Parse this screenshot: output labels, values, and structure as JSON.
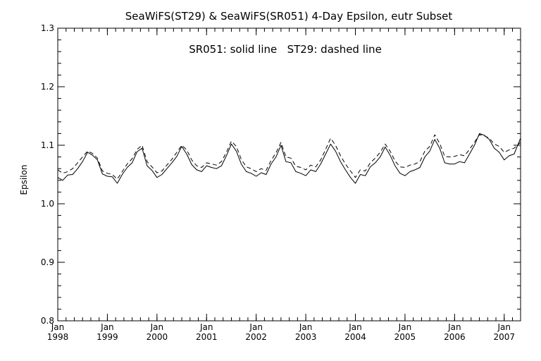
{
  "chart_data": {
    "type": "line",
    "title": "SeaWiFS(ST29) & SeaWiFS(SR051) 4-Day Epsilon, eutr Subset",
    "subtitle": "SR051: solid line   ST29: dashed line",
    "xlabel": "",
    "ylabel": "Epsilon",
    "xlim": [
      1998.0,
      2007.33
    ],
    "ylim": [
      0.8,
      1.3
    ],
    "yticks": [
      "0.8",
      "0.9",
      "1.0",
      "1.1",
      "1.2",
      "1.3"
    ],
    "xticks": [
      {
        "month": "Jan",
        "year": "1998",
        "x": 1998
      },
      {
        "month": "Jan",
        "year": "1999",
        "x": 1999
      },
      {
        "month": "Jan",
        "year": "2000",
        "x": 2000
      },
      {
        "month": "Jan",
        "year": "2001",
        "x": 2001
      },
      {
        "month": "Jan",
        "year": "2002",
        "x": 2002
      },
      {
        "month": "Jan",
        "year": "2003",
        "x": 2003
      },
      {
        "month": "Jan",
        "year": "2004",
        "x": 2004
      },
      {
        "month": "Jan",
        "year": "2005",
        "x": 2005
      },
      {
        "month": "Jan",
        "year": "2006",
        "x": 2006
      },
      {
        "month": "Jan",
        "year": "2007",
        "x": 2007
      }
    ],
    "grid": false,
    "series": [
      {
        "name": "SR051",
        "style": "solid",
        "color": "#000000",
        "x": [
          1998.0,
          1998.1,
          1998.2,
          1998.3,
          1998.4,
          1998.5,
          1998.6,
          1998.7,
          1998.8,
          1998.9,
          1999.0,
          1999.1,
          1999.2,
          1999.3,
          1999.4,
          1999.5,
          1999.6,
          1999.7,
          1999.8,
          1999.9,
          2000.0,
          2000.1,
          2000.2,
          2000.3,
          2000.4,
          2000.5,
          2000.6,
          2000.7,
          2000.8,
          2000.9,
          2001.0,
          2001.1,
          2001.2,
          2001.3,
          2001.4,
          2001.5,
          2001.6,
          2001.7,
          2001.8,
          2001.9,
          2002.0,
          2002.1,
          2002.2,
          2002.3,
          2002.4,
          2002.5,
          2002.6,
          2002.7,
          2002.8,
          2002.9,
          2003.0,
          2003.1,
          2003.2,
          2003.3,
          2003.4,
          2003.5,
          2003.6,
          2003.7,
          2003.8,
          2003.9,
          2004.0,
          2004.1,
          2004.2,
          2004.3,
          2004.4,
          2004.5,
          2004.6,
          2004.7,
          2004.8,
          2004.9,
          2005.0,
          2005.1,
          2005.2,
          2005.3,
          2005.4,
          2005.5,
          2005.6,
          2005.7,
          2005.8,
          2005.9,
          2006.0,
          2006.1,
          2006.2,
          2006.3,
          2006.4,
          2006.5,
          2006.6,
          2006.7,
          2006.8,
          2006.9,
          2007.0,
          2007.1,
          2007.2,
          2007.33
        ],
        "y": [
          1.045,
          1.04,
          1.049,
          1.05,
          1.06,
          1.072,
          1.088,
          1.083,
          1.075,
          1.051,
          1.047,
          1.046,
          1.035,
          1.05,
          1.062,
          1.07,
          1.089,
          1.095,
          1.065,
          1.057,
          1.045,
          1.05,
          1.06,
          1.07,
          1.081,
          1.098,
          1.085,
          1.067,
          1.058,
          1.055,
          1.065,
          1.062,
          1.06,
          1.065,
          1.082,
          1.102,
          1.09,
          1.068,
          1.055,
          1.052,
          1.047,
          1.053,
          1.05,
          1.068,
          1.08,
          1.1,
          1.072,
          1.07,
          1.055,
          1.052,
          1.048,
          1.058,
          1.055,
          1.068,
          1.085,
          1.102,
          1.09,
          1.072,
          1.058,
          1.045,
          1.035,
          1.05,
          1.048,
          1.063,
          1.07,
          1.08,
          1.097,
          1.083,
          1.065,
          1.052,
          1.048,
          1.055,
          1.058,
          1.062,
          1.08,
          1.09,
          1.11,
          1.095,
          1.07,
          1.068,
          1.068,
          1.072,
          1.07,
          1.085,
          1.1,
          1.12,
          1.117,
          1.11,
          1.095,
          1.088,
          1.075,
          1.082,
          1.085,
          1.112
        ]
      },
      {
        "name": "ST29",
        "style": "dashed",
        "color": "#000000",
        "x": [
          1998.0,
          1998.1,
          1998.2,
          1998.3,
          1998.4,
          1998.5,
          1998.6,
          1998.7,
          1998.8,
          1998.9,
          1999.0,
          1999.1,
          1999.2,
          1999.3,
          1999.4,
          1999.5,
          1999.6,
          1999.7,
          1999.8,
          1999.9,
          2000.0,
          2000.1,
          2000.2,
          2000.3,
          2000.4,
          2000.5,
          2000.6,
          2000.7,
          2000.8,
          2000.9,
          2001.0,
          2001.1,
          2001.2,
          2001.3,
          2001.4,
          2001.5,
          2001.6,
          2001.7,
          2001.8,
          2001.9,
          2002.0,
          2002.1,
          2002.2,
          2002.3,
          2002.4,
          2002.5,
          2002.6,
          2002.7,
          2002.8,
          2002.9,
          2003.0,
          2003.1,
          2003.2,
          2003.3,
          2003.4,
          2003.5,
          2003.6,
          2003.7,
          2003.8,
          2003.9,
          2004.0,
          2004.1,
          2004.2,
          2004.3,
          2004.4,
          2004.5,
          2004.6,
          2004.7,
          2004.8,
          2004.9,
          2005.0,
          2005.1,
          2005.2,
          2005.3,
          2005.4,
          2005.5,
          2005.6,
          2005.7,
          2005.8,
          2005.9,
          2006.0,
          2006.1,
          2006.2,
          2006.3,
          2006.4,
          2006.5,
          2006.6,
          2006.7,
          2006.8,
          2006.9,
          2007.0,
          2007.1,
          2007.2,
          2007.33
        ],
        "y": [
          1.058,
          1.052,
          1.055,
          1.06,
          1.07,
          1.08,
          1.09,
          1.086,
          1.078,
          1.056,
          1.052,
          1.05,
          1.042,
          1.055,
          1.068,
          1.077,
          1.093,
          1.1,
          1.072,
          1.063,
          1.053,
          1.056,
          1.066,
          1.076,
          1.088,
          1.1,
          1.092,
          1.075,
          1.065,
          1.062,
          1.07,
          1.068,
          1.066,
          1.072,
          1.088,
          1.107,
          1.098,
          1.076,
          1.063,
          1.06,
          1.055,
          1.06,
          1.057,
          1.074,
          1.087,
          1.105,
          1.08,
          1.078,
          1.064,
          1.062,
          1.058,
          1.066,
          1.063,
          1.075,
          1.093,
          1.112,
          1.1,
          1.082,
          1.068,
          1.056,
          1.045,
          1.058,
          1.056,
          1.07,
          1.078,
          1.088,
          1.102,
          1.09,
          1.073,
          1.063,
          1.062,
          1.066,
          1.068,
          1.072,
          1.09,
          1.098,
          1.118,
          1.103,
          1.081,
          1.08,
          1.081,
          1.084,
          1.082,
          1.093,
          1.105,
          1.118,
          1.116,
          1.112,
          1.102,
          1.098,
          1.088,
          1.092,
          1.095,
          1.105
        ]
      }
    ]
  }
}
